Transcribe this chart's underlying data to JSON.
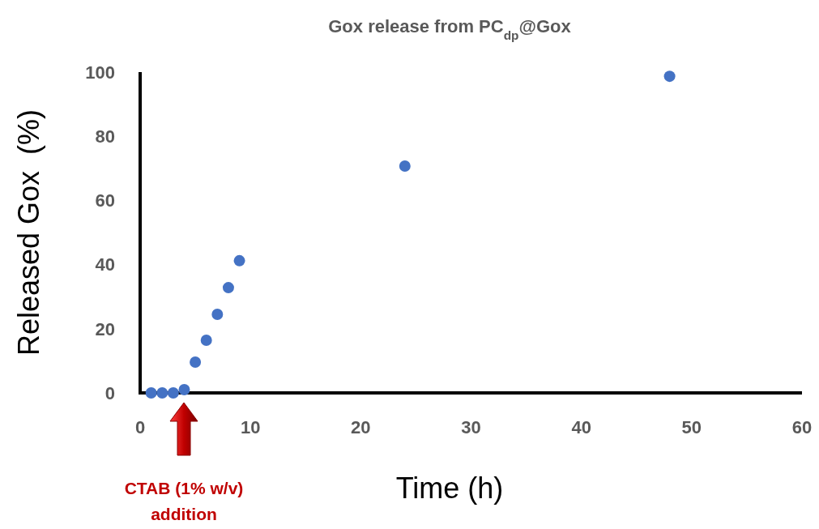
{
  "chart_data": {
    "type": "scatter",
    "title": "Gox release from PC$_{dp}$@Gox",
    "xlabel": "Time (h)",
    "ylabel": "Released Gox  (%)",
    "x": [
      1,
      2,
      3,
      4,
      5,
      6,
      7,
      8,
      9,
      24,
      48
    ],
    "series": [
      {
        "color": "#4472c4",
        "values": [
          0,
          0,
          0,
          1,
          9.6,
          16.4,
          24.5,
          32.8,
          41.2,
          70.7,
          98.7
        ]
      }
    ],
    "xlim": [
      0,
      60
    ],
    "xticks": [
      0,
      10,
      20,
      30,
      40,
      50,
      60
    ],
    "ylim": [
      0,
      100
    ],
    "yticks": [
      0,
      20,
      40,
      60,
      80,
      100
    ],
    "grid": false,
    "marker": "circle",
    "annotations": [
      "CTAB (1% w/v)\naddition"
    ]
  }
}
